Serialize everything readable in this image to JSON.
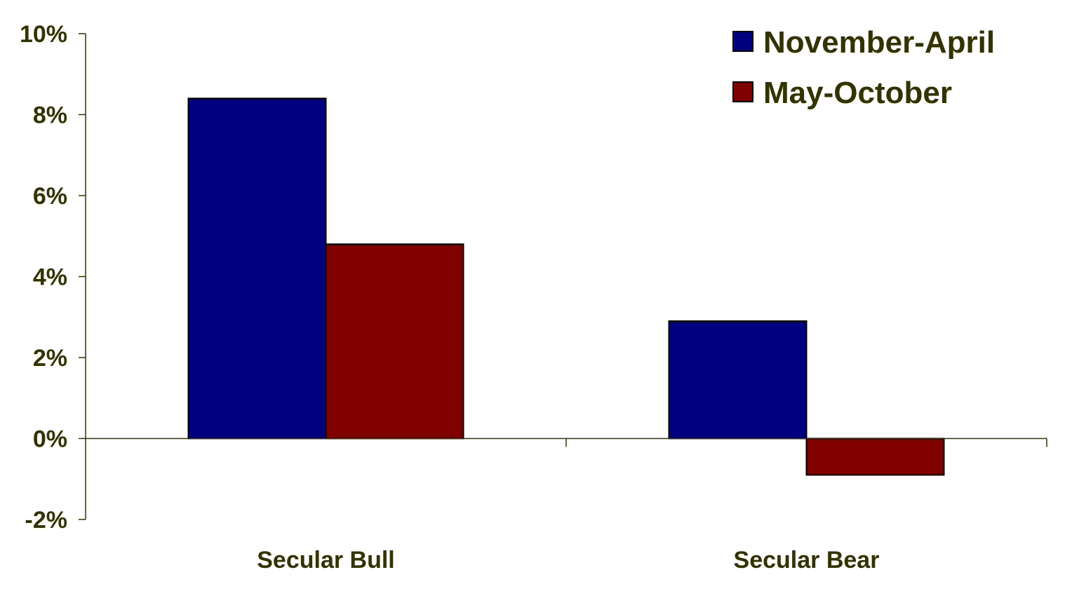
{
  "chart_data": {
    "type": "bar",
    "categories": [
      "Secular Bull",
      "Secular Bear"
    ],
    "series": [
      {
        "name": "November-April",
        "values": [
          8.4,
          2.9
        ],
        "color": "#000080"
      },
      {
        "name": "May-October",
        "values": [
          4.8,
          -0.9
        ],
        "color": "#800000"
      }
    ],
    "yticks": [
      "10%",
      "8%",
      "6%",
      "4%",
      "2%",
      "0%",
      "-2%"
    ],
    "ytick_values": [
      10,
      8,
      6,
      4,
      2,
      0,
      -2
    ],
    "ylim": [
      -2,
      10
    ],
    "unit": "%",
    "title": "",
    "xlabel": "",
    "ylabel": "",
    "legend_position": "top-right",
    "grid": false
  }
}
